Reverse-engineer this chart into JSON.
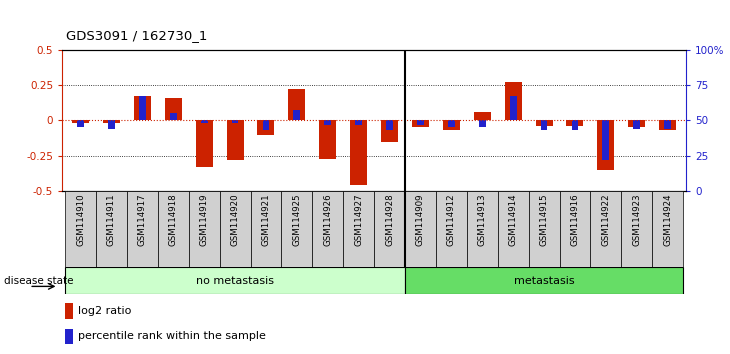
{
  "title": "GDS3091 / 162730_1",
  "samples": [
    "GSM114910",
    "GSM114911",
    "GSM114917",
    "GSM114918",
    "GSM114919",
    "GSM114920",
    "GSM114921",
    "GSM114925",
    "GSM114926",
    "GSM114927",
    "GSM114928",
    "GSM114909",
    "GSM114912",
    "GSM114913",
    "GSM114914",
    "GSM114915",
    "GSM114916",
    "GSM114922",
    "GSM114923",
    "GSM114924"
  ],
  "log2_ratio": [
    -0.02,
    -0.02,
    0.17,
    0.16,
    -0.33,
    -0.28,
    -0.1,
    0.22,
    -0.27,
    -0.46,
    -0.15,
    -0.05,
    -0.07,
    0.06,
    0.27,
    -0.04,
    -0.04,
    -0.35,
    -0.05,
    -0.07
  ],
  "percentile_rank": [
    45,
    44,
    67,
    55,
    48,
    48,
    43,
    57,
    47,
    47,
    43,
    47,
    45,
    45,
    67,
    43,
    43,
    22,
    44,
    44
  ],
  "no_metastasis_count": 11,
  "metastasis_count": 9,
  "red_color": "#CC2200",
  "blue_color": "#2222CC",
  "ylim": [
    -0.5,
    0.5
  ],
  "yticks_left": [
    -0.5,
    -0.25,
    0.0,
    0.25,
    0.5
  ],
  "yticks_right": [
    0,
    25,
    50,
    75,
    100
  ],
  "no_meta_color": "#CCFFCC",
  "meta_color": "#66DD66",
  "cell_bg": "#D0D0D0",
  "label_log2": "log2 ratio",
  "label_pct": "percentile rank within the sample",
  "disease_state_label": "disease state"
}
